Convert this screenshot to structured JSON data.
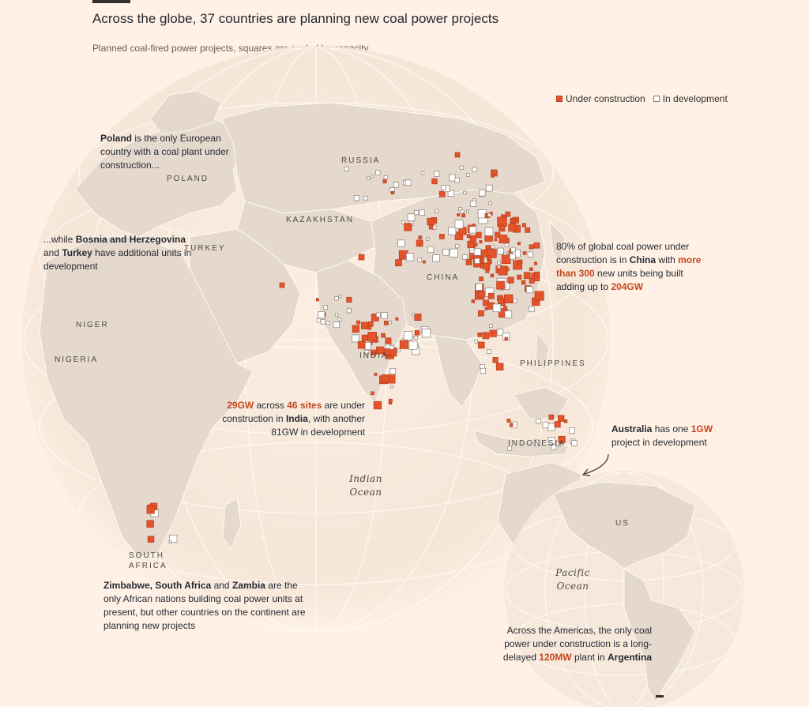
{
  "header": {
    "title": "Across the globe, 37 countries are planning new coal power projects",
    "subtitle": "Planned coal-fired power projects, squares are scaled by capacity"
  },
  "legend": {
    "under_construction": "Under construction",
    "in_development": "In development"
  },
  "colors": {
    "background": "#fff1e5",
    "land": "#e5d9ce",
    "globe": "#f4e6d9",
    "under_construction": "#e5532b",
    "in_development": "#ffffff",
    "highlight_text": "#c4471e"
  },
  "labels": {
    "russia": "RUSSIA",
    "poland": "POLAND",
    "kazakhstan": "KAZAKHSTAN",
    "turkey": "TURKEY",
    "china": "CHINA",
    "niger": "NIGER",
    "nigeria": "NIGERIA",
    "india": "INDIA",
    "philippines": "PHILIPPINES",
    "indonesia": "INDONESIA",
    "south_africa_1": "SOUTH",
    "south_africa_2": "AFRICA",
    "us": "US",
    "indian_ocean_1": "Indian",
    "indian_ocean_2": "Ocean",
    "pacific_ocean_1": "Pacific",
    "pacific_ocean_2": "Ocean"
  },
  "annotations": {
    "poland": {
      "b1": "Poland",
      "t1": " is the only European country with a coal plant under construction..."
    },
    "bosnia": {
      "t0": "...while ",
      "b1": "Bosnia and Herzegovina",
      "t1": " and ",
      "b2": "Turkey",
      "t2": " have additional units in development"
    },
    "china": {
      "t0": "80% of global coal power under construction is in ",
      "b1": "China",
      "t1": " with ",
      "h1": "more than 300",
      "t2": " new units being built adding up to ",
      "h2": "204GW"
    },
    "india": {
      "h1": "29GW",
      "t1": " across ",
      "h2": "46 sites",
      "t2": " are under construction in ",
      "b1": "India",
      "t3": ", with another 81GW in development"
    },
    "australia": {
      "b1": "Australia",
      "t1": " has one ",
      "h1": "1GW",
      "t2": " project in development"
    },
    "africa": {
      "b1": "Zimbabwe, South Africa",
      "t1": " and ",
      "b2": "Zambia",
      "t2": " are the only African nations building coal power units at present, but other countries on the continent are planning new projects"
    },
    "americas": {
      "t0": "Across the Americas, the only coal power under construction is a long-delayed ",
      "h1": "120MW",
      "t1": " plant in ",
      "b1": "Argentina"
    }
  }
}
